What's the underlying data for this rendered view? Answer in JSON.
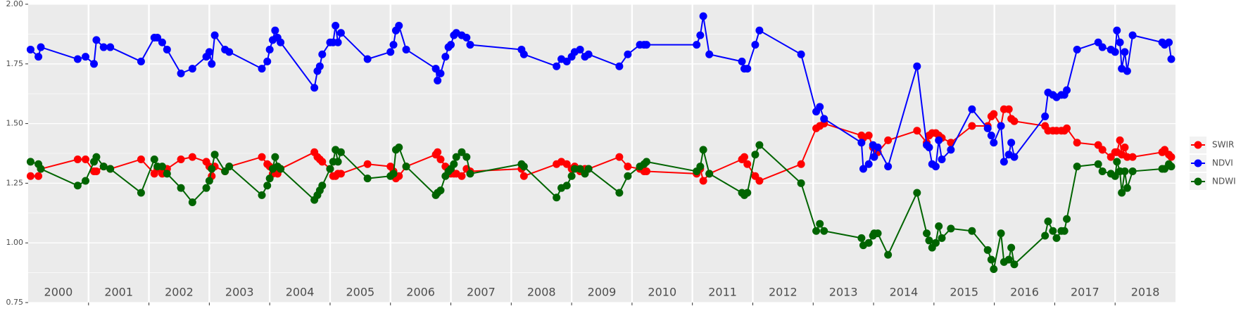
{
  "chart_data": {
    "type": "line",
    "xlim": [
      2000,
      2019
    ],
    "xticks": [
      2001,
      2002,
      2003,
      2004,
      2005,
      2006,
      2007,
      2008,
      2009,
      2010,
      2011,
      2012,
      2013,
      2014,
      2015,
      2016,
      2017,
      2018
    ],
    "ylim": [
      0.75,
      2.0
    ],
    "yticks": [
      {
        "value": 0.75,
        "label": "0.75"
      },
      {
        "value": 1.0,
        "label": "1.00"
      },
      {
        "value": 1.25,
        "label": "1.25"
      },
      {
        "value": 1.5,
        "label": "1.50"
      },
      {
        "value": 1.75,
        "label": "1.75"
      },
      {
        "value": 2.0,
        "label": "2.00"
      }
    ],
    "grid": true,
    "legend": "right",
    "year_labels": [
      "2000",
      "2001",
      "2002",
      "2003",
      "2004",
      "2005",
      "2006",
      "2007",
      "2008",
      "2009",
      "2010",
      "2011",
      "2012",
      "2013",
      "2014",
      "2015",
      "2016",
      "2017",
      "2018"
    ],
    "x": [
      2000.04,
      2000.17,
      2000.21,
      2000.82,
      2000.95,
      2001.09,
      2001.13,
      2001.25,
      2001.36,
      2001.87,
      2002.09,
      2002.14,
      2002.22,
      2002.3,
      2002.53,
      2002.72,
      2002.95,
      2003.0,
      2003.04,
      2003.09,
      2003.26,
      2003.33,
      2003.87,
      2003.96,
      2004.0,
      2004.05,
      2004.09,
      2004.13,
      2004.18,
      2004.74,
      2004.79,
      2004.83,
      2004.87,
      2005.0,
      2005.05,
      2005.09,
      2005.13,
      2005.18,
      2005.62,
      2006.0,
      2006.05,
      2006.09,
      2006.14,
      2006.26,
      2006.75,
      2006.78,
      2006.83,
      2006.91,
      2006.96,
      2007.0,
      2007.05,
      2007.09,
      2007.18,
      2007.26,
      2007.32,
      2008.17,
      2008.21,
      2008.75,
      2008.83,
      2008.92,
      2009.0,
      2009.05,
      2009.14,
      2009.22,
      2009.28,
      2009.79,
      2009.93,
      2010.13,
      2010.2,
      2010.24,
      2011.07,
      2011.13,
      2011.18,
      2011.28,
      2011.82,
      2011.86,
      2011.91,
      2012.04,
      2012.11,
      2012.8,
      2013.05,
      2013.11,
      2013.18,
      2013.8,
      2013.83,
      2013.92,
      2013.99,
      2014.01,
      2014.07,
      2014.24,
      2014.72,
      2014.88,
      2014.92,
      2014.97,
      2015.03,
      2015.08,
      2015.13,
      2015.28,
      2015.63,
      2015.89,
      2015.95,
      2015.99,
      2016.11,
      2016.16,
      2016.24,
      2016.28,
      2016.33,
      2016.84,
      2016.89,
      2016.97,
      2017.03,
      2017.11,
      2017.16,
      2017.2,
      2017.37,
      2017.72,
      2017.79,
      2017.93,
      2018.0,
      2018.03,
      2018.08,
      2018.11,
      2018.16,
      2018.2,
      2018.29,
      2018.78,
      2018.82,
      2018.89,
      2018.93
    ],
    "series": [
      {
        "name": "SWIR",
        "color": "#ff0000",
        "values": [
          1.28,
          1.28,
          1.31,
          1.35,
          1.35,
          1.3,
          1.3,
          1.32,
          1.31,
          1.35,
          1.29,
          1.31,
          1.29,
          1.31,
          1.35,
          1.36,
          1.34,
          1.32,
          1.28,
          1.32,
          1.3,
          1.32,
          1.36,
          1.33,
          1.32,
          1.29,
          1.3,
          1.29,
          1.31,
          1.38,
          1.36,
          1.35,
          1.34,
          1.31,
          1.28,
          1.28,
          1.29,
          1.29,
          1.33,
          1.32,
          1.3,
          1.27,
          1.28,
          1.32,
          1.37,
          1.38,
          1.35,
          1.32,
          1.3,
          1.29,
          1.29,
          1.29,
          1.28,
          1.31,
          1.3,
          1.31,
          1.28,
          1.33,
          1.34,
          1.33,
          1.31,
          1.32,
          1.3,
          1.31,
          1.31,
          1.36,
          1.32,
          1.31,
          1.3,
          1.3,
          1.29,
          1.31,
          1.26,
          1.29,
          1.35,
          1.36,
          1.33,
          1.28,
          1.26,
          1.33,
          1.48,
          1.49,
          1.5,
          1.45,
          1.44,
          1.45,
          1.4,
          1.4,
          1.38,
          1.43,
          1.47,
          1.42,
          1.45,
          1.46,
          1.46,
          1.45,
          1.44,
          1.42,
          1.49,
          1.49,
          1.53,
          1.54,
          1.49,
          1.56,
          1.56,
          1.52,
          1.51,
          1.49,
          1.47,
          1.47,
          1.47,
          1.47,
          1.47,
          1.48,
          1.42,
          1.41,
          1.39,
          1.36,
          1.38,
          1.38,
          1.43,
          1.37,
          1.4,
          1.36,
          1.36,
          1.38,
          1.39,
          1.37,
          1.36
        ]
      },
      {
        "name": "NDVI",
        "color": "#0000ff",
        "values": [
          1.81,
          1.78,
          1.82,
          1.77,
          1.78,
          1.75,
          1.85,
          1.82,
          1.82,
          1.76,
          1.86,
          1.86,
          1.84,
          1.81,
          1.71,
          1.73,
          1.78,
          1.8,
          1.75,
          1.87,
          1.81,
          1.8,
          1.73,
          1.76,
          1.81,
          1.85,
          1.89,
          1.86,
          1.84,
          1.65,
          1.72,
          1.74,
          1.79,
          1.84,
          1.84,
          1.91,
          1.84,
          1.88,
          1.77,
          1.8,
          1.83,
          1.89,
          1.91,
          1.81,
          1.73,
          1.68,
          1.71,
          1.78,
          1.82,
          1.83,
          1.87,
          1.88,
          1.87,
          1.86,
          1.83,
          1.81,
          1.79,
          1.74,
          1.77,
          1.76,
          1.78,
          1.8,
          1.81,
          1.78,
          1.79,
          1.74,
          1.79,
          1.83,
          1.83,
          1.83,
          1.83,
          1.87,
          1.95,
          1.79,
          1.76,
          1.73,
          1.73,
          1.83,
          1.89,
          1.79,
          1.55,
          1.57,
          1.52,
          1.42,
          1.31,
          1.33,
          1.41,
          1.36,
          1.4,
          1.32,
          1.74,
          1.41,
          1.4,
          1.33,
          1.32,
          1.43,
          1.35,
          1.39,
          1.56,
          1.48,
          1.45,
          1.42,
          1.49,
          1.34,
          1.37,
          1.42,
          1.36,
          1.53,
          1.63,
          1.62,
          1.61,
          1.62,
          1.62,
          1.64,
          1.81,
          1.84,
          1.82,
          1.81,
          1.8,
          1.89,
          1.84,
          1.73,
          1.8,
          1.72,
          1.87,
          1.84,
          1.83,
          1.84,
          1.77
        ]
      },
      {
        "name": "NDWI",
        "color": "#006400",
        "values": [
          1.34,
          1.33,
          1.31,
          1.24,
          1.26,
          1.34,
          1.36,
          1.32,
          1.31,
          1.21,
          1.35,
          1.32,
          1.32,
          1.29,
          1.23,
          1.17,
          1.23,
          1.26,
          1.31,
          1.37,
          1.3,
          1.32,
          1.2,
          1.24,
          1.27,
          1.31,
          1.36,
          1.32,
          1.31,
          1.18,
          1.2,
          1.22,
          1.24,
          1.31,
          1.34,
          1.39,
          1.34,
          1.38,
          1.27,
          1.28,
          1.29,
          1.39,
          1.4,
          1.32,
          1.2,
          1.21,
          1.22,
          1.28,
          1.3,
          1.31,
          1.33,
          1.36,
          1.38,
          1.36,
          1.29,
          1.33,
          1.32,
          1.19,
          1.23,
          1.24,
          1.28,
          1.31,
          1.31,
          1.29,
          1.31,
          1.21,
          1.28,
          1.32,
          1.33,
          1.34,
          1.3,
          1.32,
          1.39,
          1.29,
          1.21,
          1.2,
          1.21,
          1.37,
          1.41,
          1.25,
          1.05,
          1.08,
          1.05,
          1.02,
          0.99,
          1.0,
          1.03,
          1.04,
          1.04,
          0.95,
          1.21,
          1.04,
          1.01,
          0.98,
          1.0,
          1.07,
          1.02,
          1.06,
          1.05,
          0.97,
          0.93,
          0.89,
          1.04,
          0.92,
          0.93,
          0.98,
          0.91,
          1.03,
          1.09,
          1.05,
          1.02,
          1.05,
          1.05,
          1.1,
          1.32,
          1.33,
          1.3,
          1.29,
          1.28,
          1.34,
          1.3,
          1.21,
          1.3,
          1.23,
          1.3,
          1.31,
          1.31,
          1.33,
          1.32
        ]
      }
    ]
  }
}
